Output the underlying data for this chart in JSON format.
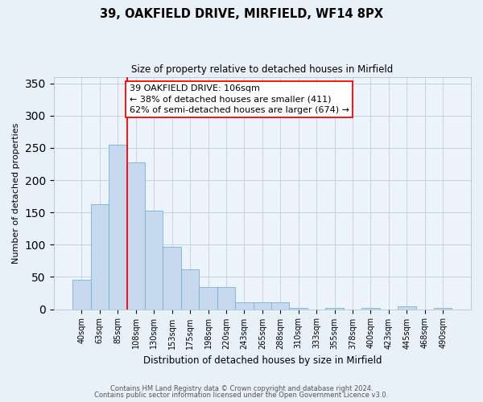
{
  "title": "39, OAKFIELD DRIVE, MIRFIELD, WF14 8PX",
  "subtitle": "Size of property relative to detached houses in Mirfield",
  "xlabel": "Distribution of detached houses by size in Mirfield",
  "ylabel": "Number of detached properties",
  "bar_labels": [
    "40sqm",
    "63sqm",
    "85sqm",
    "108sqm",
    "130sqm",
    "153sqm",
    "175sqm",
    "198sqm",
    "220sqm",
    "243sqm",
    "265sqm",
    "288sqm",
    "310sqm",
    "333sqm",
    "355sqm",
    "378sqm",
    "400sqm",
    "423sqm",
    "445sqm",
    "468sqm",
    "490sqm"
  ],
  "bar_values": [
    45,
    163,
    255,
    228,
    153,
    96,
    62,
    34,
    34,
    11,
    11,
    11,
    2,
    0,
    2,
    0,
    2,
    0,
    5,
    0,
    2
  ],
  "bar_color": "#c6d9ee",
  "bar_edge_color": "#7ab0d4",
  "annotation_title": "39 OAKFIELD DRIVE: 106sqm",
  "annotation_line1": "← 38% of detached houses are smaller (411)",
  "annotation_line2": "62% of semi-detached houses are larger (674) →",
  "ylim": [
    0,
    360
  ],
  "yticks": [
    0,
    50,
    100,
    150,
    200,
    250,
    300,
    350
  ],
  "footer_line1": "Contains HM Land Registry data © Crown copyright and database right 2024.",
  "footer_line2": "Contains public sector information licensed under the Open Government Licence v3.0.",
  "bg_color": "#e8f0f8",
  "plot_bg_color": "#edf3fa",
  "title_fontsize": 10.5,
  "subtitle_fontsize": 8.5,
  "xlabel_fontsize": 8.5,
  "ylabel_fontsize": 8,
  "tick_fontsize": 7,
  "footer_fontsize": 6,
  "annotation_fontsize": 8
}
